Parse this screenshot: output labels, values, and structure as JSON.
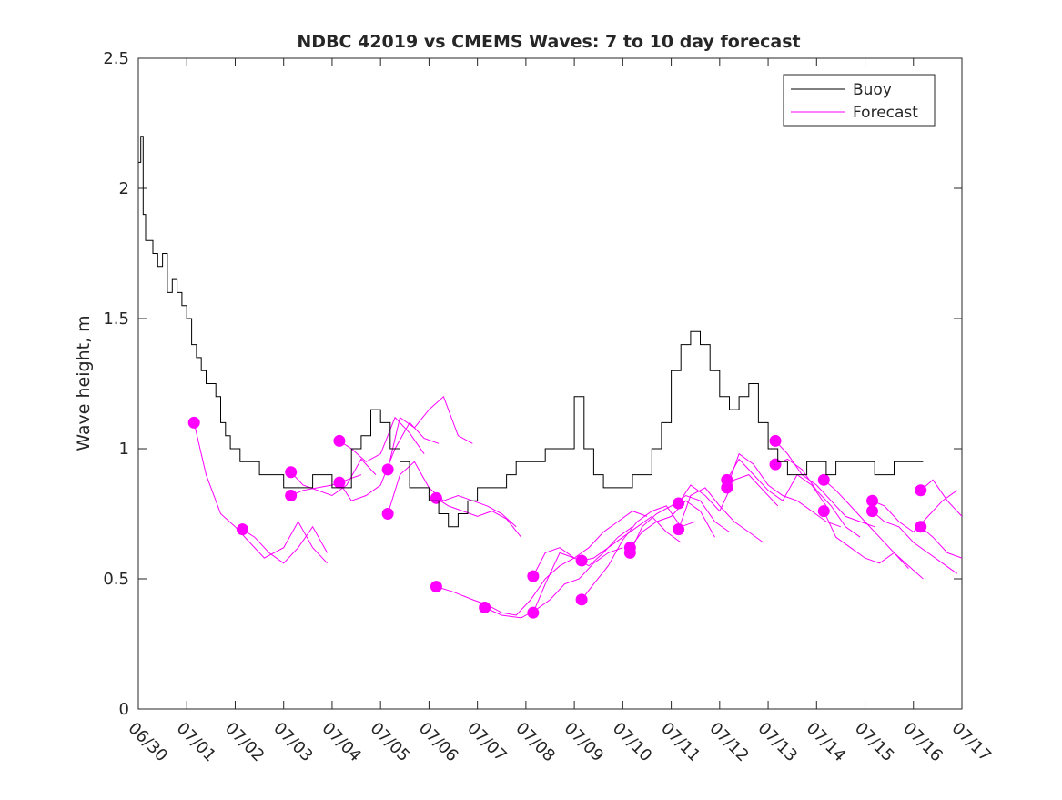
{
  "chart_data": {
    "type": "line",
    "title": "NDBC 42019 vs CMEMS Waves: 7 to 10 day forecast",
    "xlabel": "",
    "ylabel": "Wave height, m",
    "ylim": [
      0,
      2.5
    ],
    "xlim": [
      "06/30",
      "07/17"
    ],
    "x_tick_labels": [
      "06/30",
      "07/01",
      "07/02",
      "07/03",
      "07/04",
      "07/05",
      "07/06",
      "07/07",
      "07/08",
      "07/09",
      "07/10",
      "07/11",
      "07/12",
      "07/13",
      "07/14",
      "07/15",
      "07/16",
      "07/17"
    ],
    "y_tick_labels": [
      "0",
      "0.5",
      "1",
      "1.5",
      "2",
      "2.5"
    ],
    "legend_position": "top-right",
    "grid": false,
    "legend": [
      {
        "label": "Buoy",
        "color": "#000000"
      },
      {
        "label": "Forecast",
        "color": "#ff00ff"
      }
    ],
    "series": [
      {
        "name": "Buoy",
        "color": "#000000",
        "x_days": [
          0,
          0.05,
          0.1,
          0.15,
          0.2,
          0.3,
          0.4,
          0.5,
          0.6,
          0.7,
          0.8,
          0.9,
          1.0,
          1.1,
          1.2,
          1.3,
          1.4,
          1.5,
          1.6,
          1.7,
          1.8,
          1.9,
          2.0,
          2.1,
          2.2,
          2.3,
          2.4,
          2.5,
          2.6,
          2.7,
          2.8,
          2.9,
          3.0,
          3.2,
          3.4,
          3.6,
          3.8,
          4.0,
          4.2,
          4.4,
          4.6,
          4.8,
          5.0,
          5.2,
          5.4,
          5.6,
          5.8,
          6.0,
          6.2,
          6.4,
          6.6,
          6.8,
          7.0,
          7.2,
          7.4,
          7.6,
          7.8,
          8.0,
          8.2,
          8.4,
          8.6,
          8.8,
          9.0,
          9.2,
          9.4,
          9.6,
          9.8,
          10.0,
          10.2,
          10.4,
          10.6,
          10.8,
          11.0,
          11.2,
          11.4,
          11.6,
          11.8,
          12.0,
          12.2,
          12.4,
          12.6,
          12.8,
          13.0,
          13.2,
          13.4,
          13.6,
          13.8,
          14.0,
          14.2,
          14.4,
          14.6,
          14.8,
          15.0,
          15.2,
          15.4,
          15.6,
          15.8,
          16.0,
          16.2
        ],
        "y": [
          2.1,
          2.2,
          1.9,
          1.8,
          1.8,
          1.75,
          1.7,
          1.75,
          1.6,
          1.65,
          1.6,
          1.55,
          1.5,
          1.4,
          1.35,
          1.3,
          1.25,
          1.25,
          1.2,
          1.1,
          1.05,
          1.0,
          1.0,
          0.95,
          0.95,
          0.95,
          0.95,
          0.9,
          0.9,
          0.9,
          0.9,
          0.9,
          0.85,
          0.85,
          0.85,
          0.9,
          0.9,
          0.85,
          0.85,
          1.0,
          1.05,
          1.15,
          1.1,
          1.0,
          0.95,
          0.85,
          0.85,
          0.8,
          0.75,
          0.7,
          0.75,
          0.8,
          0.85,
          0.85,
          0.85,
          0.9,
          0.95,
          0.95,
          0.95,
          1.0,
          1.0,
          1.0,
          1.2,
          1.0,
          0.9,
          0.85,
          0.85,
          0.85,
          0.9,
          0.9,
          1.0,
          1.1,
          1.3,
          1.4,
          1.45,
          1.4,
          1.3,
          1.2,
          1.15,
          1.2,
          1.25,
          1.1,
          1.0,
          0.95,
          0.9,
          0.9,
          0.95,
          0.95,
          0.9,
          0.95,
          0.95,
          0.95,
          0.95,
          0.9,
          0.9,
          0.95,
          0.95,
          0.95,
          0.95
        ]
      },
      {
        "name": "Forecast",
        "color": "#ff00ff",
        "runs": [
          {
            "x_days": [
              1.15,
              1.4,
              1.7,
              2.0,
              2.3,
              2.6,
              3.0,
              3.3,
              3.6,
              3.9
            ],
            "y": [
              1.1,
              0.9,
              0.75,
              0.7,
              0.64,
              0.58,
              0.62,
              0.72,
              0.62,
              0.56
            ],
            "marker": true
          },
          {
            "x_days": [
              2.15,
              2.4,
              2.7,
              3.0,
              3.3,
              3.6,
              3.9
            ],
            "y": [
              0.69,
              0.66,
              0.6,
              0.56,
              0.62,
              0.7,
              0.6
            ],
            "marker": true
          },
          {
            "x_days": [
              3.15,
              3.4,
              3.7,
              4.0,
              4.3,
              4.6,
              4.9
            ],
            "y": [
              0.91,
              0.86,
              0.84,
              0.82,
              0.86,
              0.96,
              0.9
            ],
            "marker": true
          },
          {
            "x_days": [
              3.15,
              3.4,
              3.7,
              4.0,
              4.3,
              4.6
            ],
            "y": [
              0.82,
              0.84,
              0.85,
              0.86,
              0.88,
              0.9
            ],
            "marker": true
          },
          {
            "x_days": [
              4.15,
              4.4,
              4.7,
              5.0,
              5.3,
              5.6,
              5.9
            ],
            "y": [
              1.03,
              1.0,
              0.95,
              0.98,
              1.12,
              1.06,
              0.98
            ],
            "marker": true
          },
          {
            "x_days": [
              4.15,
              4.4,
              4.7,
              5.0,
              5.3,
              5.6,
              5.9,
              6.2
            ],
            "y": [
              0.87,
              0.8,
              0.82,
              0.86,
              1.0,
              1.1,
              1.04,
              1.02
            ],
            "marker": true
          },
          {
            "x_days": [
              5.15,
              5.4,
              5.7,
              6.0,
              6.3,
              6.6,
              6.9
            ],
            "y": [
              0.92,
              1.12,
              1.08,
              1.15,
              1.2,
              1.05,
              1.02
            ],
            "marker": true
          },
          {
            "x_days": [
              5.15,
              5.4,
              5.7,
              6.0,
              6.3,
              6.6,
              6.9,
              7.2,
              7.5,
              7.8
            ],
            "y": [
              0.75,
              0.9,
              0.95,
              0.85,
              0.8,
              0.82,
              0.8,
              0.78,
              0.75,
              0.7
            ],
            "marker": true
          },
          {
            "x_days": [
              6.15,
              6.4,
              6.7,
              7.0,
              7.3,
              7.6,
              7.9
            ],
            "y": [
              0.81,
              0.78,
              0.76,
              0.74,
              0.76,
              0.73,
              0.66
            ],
            "marker": true
          },
          {
            "x_days": [
              6.15,
              6.5,
              6.9,
              7.2,
              7.5,
              7.8,
              8.1,
              8.4,
              8.7,
              9.0
            ],
            "y": [
              0.47,
              0.45,
              0.42,
              0.4,
              0.37,
              0.36,
              0.42,
              0.5,
              0.55,
              0.58
            ],
            "marker": true
          },
          {
            "x_days": [
              7.15,
              7.5,
              7.9,
              8.2,
              8.5,
              8.8,
              9.1,
              9.4,
              9.7,
              10.0
            ],
            "y": [
              0.39,
              0.36,
              0.35,
              0.38,
              0.42,
              0.48,
              0.5,
              0.56,
              0.6,
              0.62
            ],
            "marker": true
          },
          {
            "x_days": [
              8.15,
              8.4,
              8.7,
              9.0,
              9.3,
              9.6,
              9.9,
              10.2
            ],
            "y": [
              0.37,
              0.48,
              0.6,
              0.58,
              0.55,
              0.6,
              0.66,
              0.7
            ],
            "marker": true
          },
          {
            "x_days": [
              8.15,
              8.4,
              8.7,
              9.0,
              9.3,
              9.6,
              9.9,
              10.2,
              10.5
            ],
            "y": [
              0.51,
              0.6,
              0.62,
              0.58,
              0.62,
              0.68,
              0.72,
              0.76,
              0.74
            ],
            "marker": true
          },
          {
            "x_days": [
              9.15,
              9.4,
              9.7,
              10.0,
              10.3,
              10.6,
              10.9,
              11.2
            ],
            "y": [
              0.57,
              0.58,
              0.62,
              0.66,
              0.7,
              0.74,
              0.68,
              0.64
            ],
            "marker": true
          },
          {
            "x_days": [
              9.15,
              9.4,
              9.7,
              10.0,
              10.3,
              10.6,
              10.9,
              11.2,
              11.5
            ],
            "y": [
              0.42,
              0.48,
              0.55,
              0.65,
              0.72,
              0.76,
              0.78,
              0.7,
              0.72
            ],
            "marker": true
          },
          {
            "x_days": [
              10.15,
              10.4,
              10.7,
              11.0,
              11.3,
              11.6,
              11.9,
              12.2
            ],
            "y": [
              0.6,
              0.7,
              0.75,
              0.78,
              0.82,
              0.8,
              0.72,
              0.68
            ],
            "marker": true
          },
          {
            "x_days": [
              10.15,
              10.4,
              10.7,
              11.0,
              11.3,
              11.6,
              11.9
            ],
            "y": [
              0.62,
              0.68,
              0.72,
              0.74,
              0.8,
              0.76,
              0.66
            ],
            "marker": true
          },
          {
            "x_days": [
              11.15,
              11.4,
              11.7,
              12.0,
              12.3,
              12.6,
              12.9,
              13.2
            ],
            "y": [
              0.79,
              0.86,
              0.82,
              0.76,
              0.88,
              0.9,
              0.84,
              0.78
            ],
            "marker": true
          },
          {
            "x_days": [
              11.15,
              11.4,
              11.7,
              12.0,
              12.3,
              12.6,
              12.9
            ],
            "y": [
              0.69,
              0.82,
              0.85,
              0.78,
              0.72,
              0.68,
              0.64
            ],
            "marker": true
          },
          {
            "x_days": [
              12.15,
              12.4,
              12.7,
              13.0,
              13.3,
              13.6,
              13.9,
              14.2
            ],
            "y": [
              0.88,
              0.96,
              0.9,
              0.84,
              0.8,
              0.9,
              0.86,
              0.78
            ],
            "marker": true
          },
          {
            "x_days": [
              12.15,
              12.4,
              12.7,
              13.0,
              13.3,
              13.6,
              13.9,
              14.2,
              14.5
            ],
            "y": [
              0.85,
              0.98,
              0.94,
              0.86,
              0.82,
              0.8,
              0.76,
              0.72,
              0.7
            ],
            "marker": true
          },
          {
            "x_days": [
              13.15,
              13.4,
              13.7,
              14.0,
              14.3,
              14.6,
              14.9,
              15.2
            ],
            "y": [
              1.03,
              0.98,
              0.9,
              0.86,
              0.8,
              0.74,
              0.72,
              0.7
            ],
            "marker": true
          },
          {
            "x_days": [
              13.15,
              13.4,
              13.7,
              14.0,
              14.3,
              14.6,
              14.9
            ],
            "y": [
              0.94,
              0.96,
              0.92,
              0.84,
              0.78,
              0.7,
              0.66
            ],
            "marker": true
          },
          {
            "x_days": [
              14.15,
              14.4,
              14.7,
              15.0,
              15.3,
              15.6,
              15.9
            ],
            "y": [
              0.88,
              0.84,
              0.78,
              0.72,
              0.66,
              0.6,
              0.54
            ],
            "marker": true
          },
          {
            "x_days": [
              14.15,
              14.4,
              14.7,
              15.0,
              15.3,
              15.6,
              15.9,
              16.2
            ],
            "y": [
              0.76,
              0.66,
              0.62,
              0.58,
              0.56,
              0.6,
              0.55,
              0.5
            ],
            "marker": true
          },
          {
            "x_days": [
              15.15,
              15.4,
              15.7,
              16.0,
              16.3,
              16.6,
              16.9
            ],
            "y": [
              0.8,
              0.78,
              0.72,
              0.68,
              0.74,
              0.8,
              0.84
            ],
            "marker": true
          },
          {
            "x_days": [
              15.15,
              15.4,
              15.7,
              16.0,
              16.3,
              16.6,
              16.9
            ],
            "y": [
              0.76,
              0.72,
              0.7,
              0.64,
              0.6,
              0.56,
              0.52
            ],
            "marker": true
          },
          {
            "x_days": [
              16.15,
              16.4,
              16.7,
              17.0
            ],
            "y": [
              0.84,
              0.88,
              0.8,
              0.74
            ],
            "marker": true
          },
          {
            "x_days": [
              16.15,
              16.4,
              16.7,
              17.0
            ],
            "y": [
              0.7,
              0.66,
              0.6,
              0.58
            ],
            "marker": true
          }
        ]
      }
    ]
  }
}
